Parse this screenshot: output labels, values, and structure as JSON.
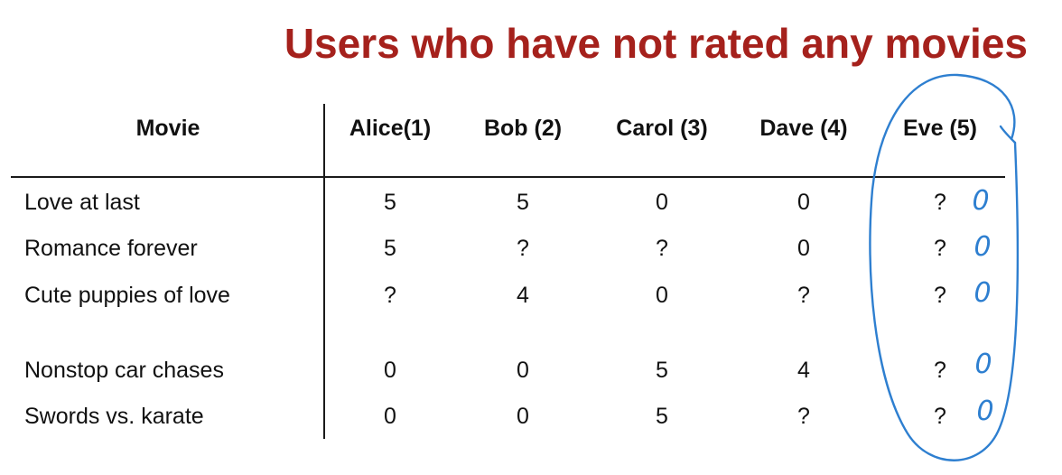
{
  "slide": {
    "title": "Users who have not rated any movies"
  },
  "table": {
    "column_headers": [
      "Movie",
      "Alice(1)",
      "Bob (2)",
      "Carol (3)",
      "Dave (4)",
      "Eve (5)"
    ],
    "rows": [
      {
        "movie": "Love at last",
        "ratings": [
          "5",
          "5",
          "0",
          "0",
          "?"
        ],
        "annotation": "0"
      },
      {
        "movie": "Romance forever",
        "ratings": [
          "5",
          "?",
          "?",
          "0",
          "?"
        ],
        "annotation": "0"
      },
      {
        "movie": "Cute puppies of love",
        "ratings": [
          "?",
          "4",
          "0",
          "?",
          "?"
        ],
        "annotation": "0"
      },
      {
        "movie": "Nonstop car chases",
        "ratings": [
          "0",
          "0",
          "5",
          "4",
          "?"
        ],
        "annotation": "0"
      },
      {
        "movie": "Swords vs. karate",
        "ratings": [
          "0",
          "0",
          "5",
          "?",
          "?"
        ],
        "annotation": "0"
      }
    ]
  },
  "colors": {
    "title": "#a5211c",
    "text": "#111111",
    "annotation_ink": "#2e7fd0"
  },
  "annotations": {
    "eve_column_circled": true,
    "handwritten_predictions": true
  }
}
